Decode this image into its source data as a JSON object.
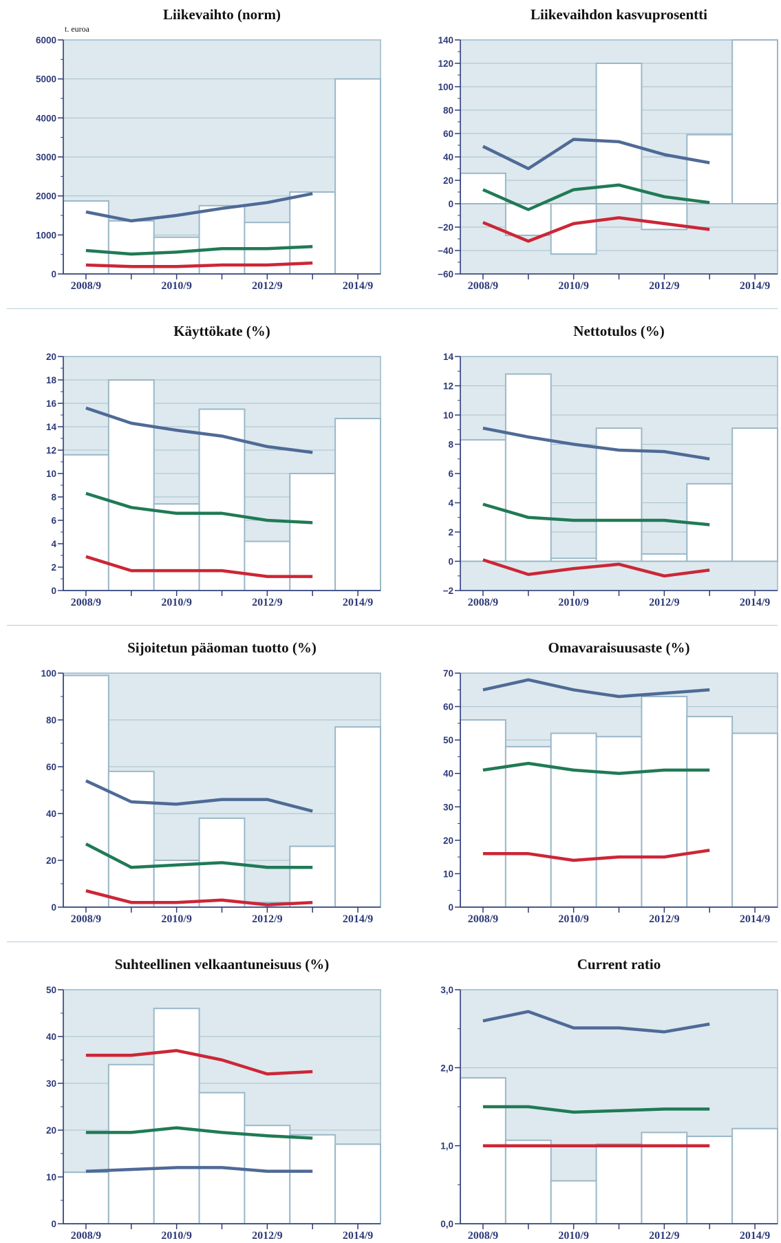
{
  "colors": {
    "plot_background": "#dde9ee",
    "bar_fill": "#ffffff",
    "bar_edge": "#9ab7c9",
    "gridline": "#a9bfcc",
    "axis_text": "#2e3a78",
    "series_blue": "#4f6a96",
    "series_green": "#207a55",
    "series_red": "#cc2636"
  },
  "chart_data": [
    {
      "type": "bar+line",
      "title": "Liikevaihto (norm)",
      "unit_label": "t. euroa",
      "ylim": [
        0,
        6000
      ],
      "yticks": [
        0,
        1000,
        2000,
        3000,
        4000,
        5000,
        6000
      ],
      "yticklabels": [
        "0",
        "1000",
        "2000",
        "3000",
        "4000",
        "5000",
        "6000"
      ],
      "xtick_labels": [
        "2008/9",
        "2010/9",
        "2012/9",
        "2014/9"
      ],
      "bars": [
        1870,
        1360,
        940,
        1750,
        1320,
        2100,
        5000
      ],
      "series": [
        {
          "color": "#4f6a96",
          "values": [
            1590,
            1360,
            1500,
            1680,
            1830,
            2060
          ]
        },
        {
          "color": "#207a55",
          "values": [
            600,
            510,
            560,
            650,
            650,
            700
          ]
        },
        {
          "color": "#cc2636",
          "values": [
            230,
            190,
            190,
            230,
            230,
            280
          ]
        }
      ]
    },
    {
      "type": "bar+line",
      "title": "Liikevaihdon kasvuprosentti",
      "ylim": [
        -60,
        140
      ],
      "yticks": [
        -60,
        -40,
        -20,
        0,
        20,
        40,
        60,
        80,
        100,
        120,
        140
      ],
      "yticklabels": [
        "−60",
        "−40",
        "−20",
        "0",
        "20",
        "40",
        "60",
        "80",
        "100",
        "120",
        "140"
      ],
      "xtick_labels": [
        "2008/9",
        "2010/9",
        "2012/9",
        "2014/9"
      ],
      "bars": [
        26,
        -27,
        -43,
        120,
        -22,
        59,
        140
      ],
      "series": [
        {
          "color": "#4f6a96",
          "values": [
            49,
            30,
            55,
            53,
            42,
            35
          ]
        },
        {
          "color": "#207a55",
          "values": [
            12,
            -5,
            12,
            16,
            6,
            1
          ]
        },
        {
          "color": "#cc2636",
          "values": [
            -16,
            -32,
            -17,
            -12,
            -17,
            -22
          ]
        }
      ]
    },
    {
      "type": "bar+line",
      "title": "Käyttökate (%)",
      "ylim": [
        0,
        20
      ],
      "yticks": [
        0,
        2,
        4,
        6,
        8,
        10,
        12,
        14,
        16,
        18,
        20
      ],
      "yticklabels": [
        "0",
        "2",
        "4",
        "6",
        "8",
        "10",
        "12",
        "14",
        "16",
        "18",
        "20"
      ],
      "xtick_labels": [
        "2008/9",
        "2010/9",
        "2012/9",
        "2014/9"
      ],
      "bars": [
        11.6,
        18.0,
        7.4,
        15.5,
        4.2,
        10.0,
        14.7
      ],
      "series": [
        {
          "color": "#4f6a96",
          "values": [
            15.6,
            14.3,
            13.7,
            13.2,
            12.3,
            11.8
          ]
        },
        {
          "color": "#207a55",
          "values": [
            8.3,
            7.1,
            6.6,
            6.6,
            6.0,
            5.8
          ]
        },
        {
          "color": "#cc2636",
          "values": [
            2.9,
            1.7,
            1.7,
            1.7,
            1.2,
            1.2
          ]
        }
      ]
    },
    {
      "type": "bar+line",
      "title": "Nettotulos (%)",
      "ylim": [
        -2,
        14
      ],
      "yticks": [
        -2,
        0,
        2,
        4,
        6,
        8,
        10,
        12,
        14
      ],
      "yticklabels": [
        "−2",
        "0",
        "2",
        "4",
        "6",
        "8",
        "10",
        "12",
        "14"
      ],
      "xtick_labels": [
        "2008/9",
        "2010/9",
        "2012/9",
        "2014/9"
      ],
      "bars": [
        8.3,
        12.8,
        0.2,
        9.1,
        0.5,
        5.3,
        9.1
      ],
      "series": [
        {
          "color": "#4f6a96",
          "values": [
            9.1,
            8.5,
            8.0,
            7.6,
            7.5,
            7.0
          ]
        },
        {
          "color": "#207a55",
          "values": [
            3.9,
            3.0,
            2.8,
            2.8,
            2.8,
            2.5
          ]
        },
        {
          "color": "#cc2636",
          "values": [
            0.1,
            -0.9,
            -0.5,
            -0.2,
            -1.0,
            -0.6
          ]
        }
      ]
    },
    {
      "type": "bar+line",
      "title": "Sijoitetun pääoman tuotto (%)",
      "ylim": [
        0,
        100
      ],
      "yticks": [
        0,
        20,
        40,
        60,
        80,
        100
      ],
      "yticklabels": [
        "0",
        "20",
        "40",
        "60",
        "80",
        "100"
      ],
      "xtick_labels": [
        "2008/9",
        "2010/9",
        "2012/9",
        "2014/9"
      ],
      "bars": [
        99,
        58,
        20,
        38,
        2,
        26,
        77
      ],
      "series": [
        {
          "color": "#4f6a96",
          "values": [
            54,
            45,
            44,
            46,
            46,
            41
          ]
        },
        {
          "color": "#207a55",
          "values": [
            27,
            17,
            18,
            19,
            17,
            17
          ]
        },
        {
          "color": "#cc2636",
          "values": [
            7,
            2,
            2,
            3,
            1,
            2
          ]
        }
      ]
    },
    {
      "type": "bar+line",
      "title": "Omavaraisuusaste (%)",
      "ylim": [
        0,
        70
      ],
      "yticks": [
        0,
        10,
        20,
        30,
        40,
        50,
        60,
        70
      ],
      "yticklabels": [
        "0",
        "10",
        "20",
        "30",
        "40",
        "50",
        "60",
        "70"
      ],
      "xtick_labels": [
        "2008/9",
        "2010/9",
        "2012/9",
        "2014/9"
      ],
      "bars": [
        56,
        48,
        52,
        51,
        63,
        57,
        52
      ],
      "series": [
        {
          "color": "#4f6a96",
          "values": [
            65,
            68,
            65,
            63,
            64,
            65
          ]
        },
        {
          "color": "#207a55",
          "values": [
            41,
            43,
            41,
            40,
            41,
            41
          ]
        },
        {
          "color": "#cc2636",
          "values": [
            16,
            16,
            14,
            15,
            15,
            17
          ]
        }
      ]
    },
    {
      "type": "bar+line",
      "title": "Suhteellinen velkaantuneisuus (%)",
      "ylim": [
        0,
        50
      ],
      "yticks": [
        0,
        10,
        20,
        30,
        40,
        50
      ],
      "yticklabels": [
        "0",
        "10",
        "20",
        "30",
        "40",
        "50"
      ],
      "xtick_labels": [
        "2008/9",
        "2010/9",
        "2012/9",
        "2014/9"
      ],
      "bars": [
        11,
        34,
        46,
        28,
        21,
        19,
        17
      ],
      "series": [
        {
          "color": "#cc2636",
          "values": [
            36,
            36,
            37,
            35,
            32,
            32.5
          ]
        },
        {
          "color": "#207a55",
          "values": [
            19.5,
            19.5,
            20.5,
            19.5,
            18.8,
            18.3
          ]
        },
        {
          "color": "#4f6a96",
          "values": [
            11.2,
            11.6,
            12.0,
            12.0,
            11.2,
            11.2
          ]
        }
      ]
    },
    {
      "type": "bar+line",
      "title": "Current ratio",
      "ylim": [
        0,
        3
      ],
      "yticks": [
        0,
        1,
        2,
        3
      ],
      "yticklabels": [
        "0,0",
        "1,0",
        "2,0",
        "3,0"
      ],
      "xtick_labels": [
        "2008/9",
        "2010/9",
        "2012/9",
        "2014/9"
      ],
      "bars": [
        1.87,
        1.07,
        0.55,
        1.02,
        1.17,
        1.12,
        1.22
      ],
      "series": [
        {
          "color": "#4f6a96",
          "values": [
            2.6,
            2.72,
            2.51,
            2.51,
            2.46,
            2.56
          ]
        },
        {
          "color": "#207a55",
          "values": [
            1.5,
            1.5,
            1.43,
            1.45,
            1.47,
            1.47
          ]
        },
        {
          "color": "#cc2636",
          "values": [
            1.0,
            1.0,
            1.0,
            1.0,
            1.0,
            1.0
          ]
        }
      ]
    }
  ]
}
